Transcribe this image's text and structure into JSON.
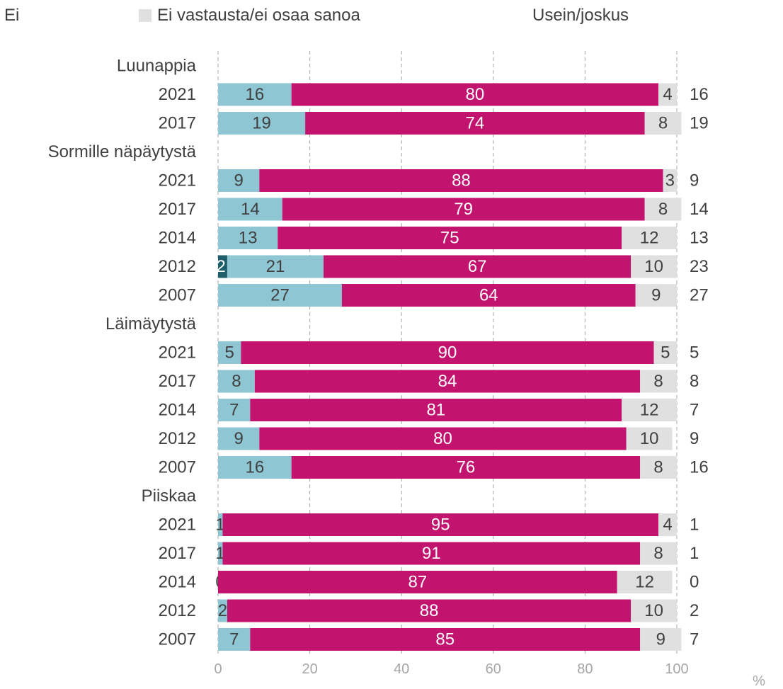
{
  "chart_data": {
    "type": "bar",
    "orientation": "horizontal",
    "stacked": true,
    "xlim": [
      0,
      100
    ],
    "x_ticks": [
      0,
      20,
      40,
      60,
      80,
      100
    ],
    "x_unit": "%",
    "grid": "vertical-dashed",
    "legend": [
      {
        "name": "Ei",
        "color": "#ffffff"
      },
      {
        "name": "Ei vastausta/ei osaa sanoa",
        "color": "#e0e0e0"
      },
      {
        "name": "Usein/joskus",
        "color": "#ffffff"
      }
    ],
    "series_colors": {
      "usein": "#1f5f6b",
      "joskus": "#8ec6d4",
      "ei": "#c2136f",
      "eos": "#e0e0e0"
    },
    "right_column_label": "Usein/joskus",
    "groups": [
      {
        "name": "Luunappia",
        "rows": [
          {
            "year": "2021",
            "usein": 0,
            "joskus": 16,
            "ei": 80,
            "eos": 4,
            "total": 16
          },
          {
            "year": "2017",
            "usein": 0,
            "joskus": 19,
            "ei": 74,
            "eos": 8,
            "total": 19
          }
        ]
      },
      {
        "name": "Sormille näpäytystä",
        "rows": [
          {
            "year": "2021",
            "usein": 0,
            "joskus": 9,
            "ei": 88,
            "eos": 3,
            "total": 9
          },
          {
            "year": "2017",
            "usein": 0,
            "joskus": 14,
            "ei": 79,
            "eos": 8,
            "total": 14
          },
          {
            "year": "2014",
            "usein": 0,
            "joskus": 13,
            "ei": 75,
            "eos": 12,
            "total": 13
          },
          {
            "year": "2012",
            "usein": 2,
            "joskus": 21,
            "ei": 67,
            "eos": 10,
            "total": 23
          },
          {
            "year": "2007",
            "usein": 0,
            "joskus": 27,
            "ei": 64,
            "eos": 9,
            "total": 27
          }
        ]
      },
      {
        "name": "Läimäytystä",
        "rows": [
          {
            "year": "2021",
            "usein": 0,
            "joskus": 5,
            "ei": 90,
            "eos": 5,
            "total": 5
          },
          {
            "year": "2017",
            "usein": 0,
            "joskus": 8,
            "ei": 84,
            "eos": 8,
            "total": 8
          },
          {
            "year": "2014",
            "usein": 0,
            "joskus": 7,
            "ei": 81,
            "eos": 12,
            "total": 7
          },
          {
            "year": "2012",
            "usein": 0,
            "joskus": 9,
            "ei": 80,
            "eos": 10,
            "total": 9
          },
          {
            "year": "2007",
            "usein": 0,
            "joskus": 16,
            "ei": 76,
            "eos": 8,
            "total": 16
          }
        ]
      },
      {
        "name": "Piiskaa",
        "rows": [
          {
            "year": "2021",
            "usein": 0,
            "joskus": 1,
            "ei": 95,
            "eos": 4,
            "total": 1
          },
          {
            "year": "2017",
            "usein": 0,
            "joskus": 1,
            "ei": 91,
            "eos": 8,
            "total": 1
          },
          {
            "year": "2014",
            "usein": 0,
            "joskus": 0,
            "ei": 87,
            "eos": 12,
            "total": 0
          },
          {
            "year": "2012",
            "usein": 0,
            "joskus": 2,
            "ei": 88,
            "eos": 10,
            "total": 2
          },
          {
            "year": "2007",
            "usein": 0,
            "joskus": 7,
            "ei": 85,
            "eos": 9,
            "total": 7
          }
        ]
      }
    ]
  }
}
